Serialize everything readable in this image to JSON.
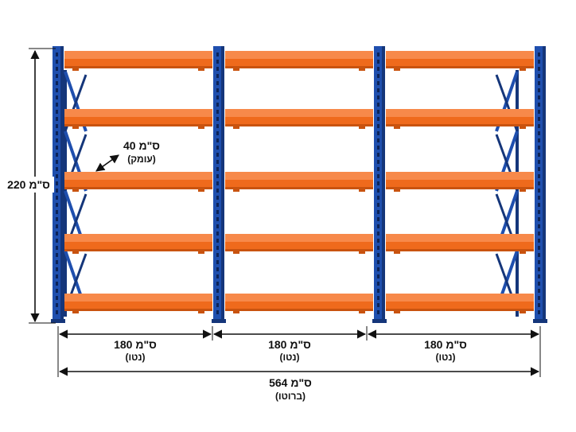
{
  "colors": {
    "frame": "#1f4fae",
    "frame_dark": "#15367a",
    "shelf": "#ef6a1c",
    "shelf_dark": "#c9530f",
    "shelf_light": "#f7894a",
    "dimension": "#111111"
  },
  "rack": {
    "bays": 3,
    "levels": 5
  },
  "dimensions": {
    "height": {
      "value": "220 ס\"מ"
    },
    "depth": {
      "value": "40 ס\"מ",
      "note": "(עומק)"
    },
    "bays": [
      {
        "value": "180 ס\"מ",
        "note": "(נטו)"
      },
      {
        "value": "180 ס\"מ",
        "note": "(נטו)"
      },
      {
        "value": "180 ס\"מ",
        "note": "(נטו)"
      }
    ],
    "total": {
      "value": "564 ס\"מ",
      "note": "(ברוטו)"
    }
  }
}
